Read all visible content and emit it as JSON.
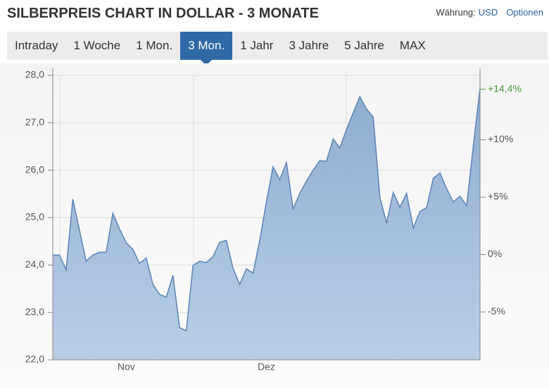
{
  "chart_data": {
    "type": "area",
    "title": "SILBERPREIS CHART IN DOLLAR - 3 MONATE",
    "categories": [
      null,
      null,
      null,
      null,
      null,
      null,
      null,
      null,
      null,
      null,
      null,
      "Nov",
      null,
      null,
      null,
      null,
      null,
      null,
      null,
      null,
      null,
      null,
      null,
      null,
      null,
      null,
      null,
      null,
      null,
      null,
      null,
      null,
      "Dez",
      null,
      null,
      null,
      null,
      null,
      null,
      null,
      null,
      null,
      null,
      null,
      null,
      null,
      null,
      null,
      null,
      null,
      null,
      null,
      null,
      null,
      null,
      null,
      null,
      null,
      null,
      null,
      null,
      null,
      null,
      null,
      null
    ],
    "series": [
      {
        "name": "USD",
        "color": "#5b84b5",
        "values": [
          24.21,
          24.21,
          23.9,
          25.39,
          24.73,
          24.08,
          24.21,
          24.27,
          24.27,
          25.09,
          24.76,
          24.47,
          24.33,
          24.03,
          24.15,
          23.59,
          23.38,
          23.32,
          23.78,
          22.68,
          22.61,
          23.99,
          24.08,
          24.05,
          24.18,
          24.48,
          24.52,
          23.93,
          23.59,
          23.92,
          23.83,
          24.52,
          25.33,
          26.07,
          25.8,
          26.16,
          25.18,
          25.51,
          25.77,
          26.0,
          26.2,
          26.19,
          26.66,
          26.47,
          26.86,
          27.21,
          27.55,
          27.29,
          27.12,
          25.43,
          24.88,
          25.53,
          25.22,
          25.51,
          24.78,
          25.13,
          25.21,
          25.83,
          25.94,
          25.61,
          25.33,
          25.45,
          25.25,
          26.52,
          27.72
        ]
      }
    ],
    "ylim": [
      22,
      28
    ],
    "yticks": [
      {
        "value": 22,
        "label": "22,0"
      },
      {
        "value": 23,
        "label": "23,0"
      },
      {
        "value": 24,
        "label": "24,0"
      },
      {
        "value": 25,
        "label": "25,0"
      },
      {
        "value": 26,
        "label": "26,0"
      },
      {
        "value": 27,
        "label": "27,0"
      },
      {
        "value": 28,
        "label": "28,0"
      }
    ],
    "y2lim": [
      -9.17,
      15.61
    ],
    "y2ticks": [
      {
        "value": -5,
        "label": "-5%"
      },
      {
        "value": 0,
        "label": "0%"
      },
      {
        "value": 5,
        "label": "+5%"
      },
      {
        "value": 10,
        "label": "+10%"
      }
    ],
    "change": {
      "value": 14.4,
      "label": "+14,4%",
      "color": "#4a9a3a"
    },
    "grid": true
  },
  "ui": {
    "currency_label": "Währung:",
    "currency": "USD",
    "options": "Optionen",
    "tabs": [
      "Intraday",
      "1 Woche",
      "1 Mon.",
      "3 Mon.",
      "1 Jahr",
      "3 Jahre",
      "5 Jahre",
      "MAX"
    ],
    "active_tab": 3
  }
}
